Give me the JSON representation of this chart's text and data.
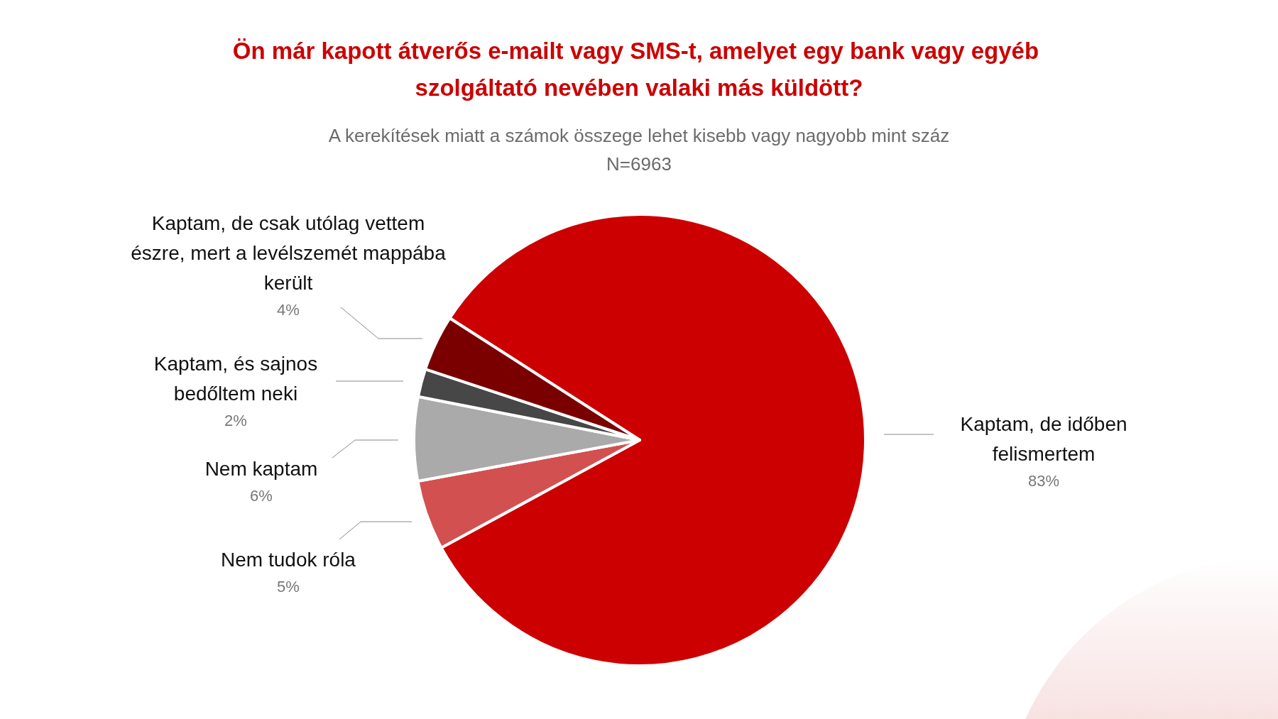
{
  "chart_data": {
    "type": "pie",
    "title": "Ön már kapott átverős e-mailt vagy SMS-t, amelyet egy bank vagy egyéb szolgáltató nevében valaki más küldött?",
    "subtitle": "A kerekítések miatt a számok összege lehet kisebb vagy nagyobb mint száz",
    "annotations": [
      "N=6963"
    ],
    "categories": [
      "Kaptam, de időben felismertem",
      "Nem tudok róla",
      "Nem kaptam",
      "Kaptam, és sajnos bedőltem neki",
      "Kaptam, de csak utólag vettem észre, mert a levélszemét mappába került"
    ],
    "values": [
      83,
      5,
      6,
      2,
      4
    ],
    "value_labels": [
      "83%",
      "5%",
      "6%",
      "2%",
      "4%"
    ],
    "colors": [
      "#cc0000",
      "#d35050",
      "#aaaaaa",
      "#474747",
      "#7a0000"
    ],
    "legend": false
  }
}
